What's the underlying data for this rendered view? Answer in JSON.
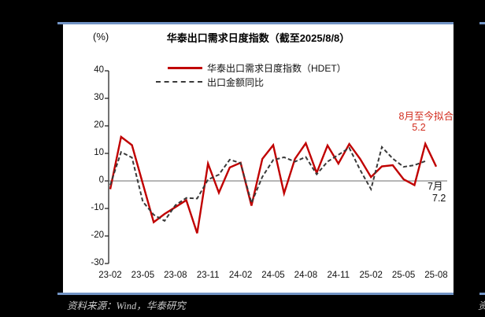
{
  "chart_data": {
    "type": "line",
    "title": "华泰出口需求日度指数（截至2025/8/8）",
    "unit_label": "(%)",
    "ylim": [
      -30,
      40
    ],
    "yticks": [
      40,
      30,
      20,
      10,
      0,
      -10,
      -20,
      -30
    ],
    "grid": "zero-line-only",
    "legend_position": "top-center",
    "months": [
      "23-02",
      "23-03",
      "23-04",
      "23-05",
      "23-06",
      "23-07",
      "23-08",
      "23-09",
      "23-10",
      "23-11",
      "23-12",
      "24-01",
      "24-02",
      "24-03",
      "24-04",
      "24-05",
      "24-06",
      "24-07",
      "24-08",
      "24-09",
      "24-10",
      "24-11",
      "24-12",
      "25-01",
      "25-02",
      "25-03",
      "25-04",
      "25-05",
      "25-06",
      "25-07",
      "25-08"
    ],
    "xtick_labels": [
      "23-02",
      "23-05",
      "23-08",
      "23-11",
      "24-02",
      "24-05",
      "24-08",
      "24-11",
      "25-02",
      "25-05",
      "25-08"
    ],
    "series": [
      {
        "name": "华泰出口需求日度指数（HDET）",
        "style": "solid",
        "color": "#c00000",
        "values": [
          -3,
          16,
          13,
          -1,
          -15,
          -12,
          -9.5,
          -7,
          -19,
          6.3,
          -4.3,
          4.9,
          6.6,
          -9,
          8,
          13,
          -4.5,
          8,
          13.7,
          2.9,
          12.9,
          6.3,
          13.4,
          8,
          1.4,
          5.3,
          5.7,
          0.6,
          -1.5,
          13.5,
          5.2
        ]
      },
      {
        "name": "出口金额同比",
        "style": "dashed",
        "color": "#3a3a3a",
        "values": [
          -1.5,
          10.5,
          8.5,
          -7.5,
          -12.3,
          -14.5,
          -8.8,
          -6.2,
          -6.4,
          0.5,
          2.3,
          7.7,
          6.5,
          -8,
          1.5,
          7.6,
          8.6,
          7.0,
          8.7,
          2.4,
          7,
          9.5,
          12,
          4,
          -3,
          12.3,
          8.1,
          5.1,
          5.7,
          7.2,
          null
        ]
      }
    ],
    "annotations": {
      "fit_label": "8月至今拟合",
      "fit_value": "5.2",
      "month_label": "7月",
      "month_value": "7.2"
    }
  },
  "footer": {
    "source": "资料来源：Wind，华泰研究",
    "next_panel_fragment": "资"
  }
}
